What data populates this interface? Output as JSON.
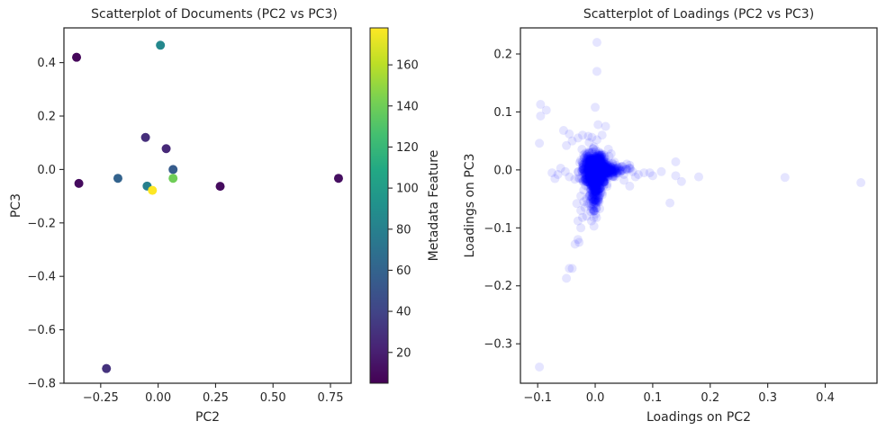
{
  "chart_data": [
    {
      "type": "scatter",
      "title": "Scatterplot of Documents (PC2 vs PC3)",
      "xlabel": "PC2",
      "ylabel": "PC3",
      "xlim": [
        -0.41,
        0.84
      ],
      "ylim": [
        -0.8,
        0.53
      ],
      "xticks": [
        -0.25,
        0.0,
        0.25,
        0.5,
        0.75
      ],
      "xtick_labels": [
        "−0.25",
        "0.00",
        "0.25",
        "0.50",
        "0.75"
      ],
      "yticks": [
        0.4,
        0.2,
        0.0,
        -0.2,
        -0.4,
        -0.6,
        -0.8
      ],
      "ytick_labels": [
        "0.4",
        "0.2",
        "0.0",
        "−0.2",
        "−0.4",
        "−0.6",
        "−0.8"
      ],
      "grid": false,
      "colormap": "viridis",
      "colorbar": {
        "label": "Metadata Feature",
        "range": [
          5,
          178
        ],
        "ticks": [
          20,
          40,
          60,
          80,
          100,
          120,
          140,
          160
        ],
        "tick_labels": [
          "20",
          "40",
          "60",
          "80",
          "100",
          "120",
          "140",
          "160"
        ]
      },
      "points": [
        {
          "x": -0.355,
          "y": 0.42,
          "c": 8
        },
        {
          "x": 0.01,
          "y": 0.465,
          "c": 85
        },
        {
          "x": -0.055,
          "y": 0.12,
          "c": 28
        },
        {
          "x": 0.035,
          "y": 0.078,
          "c": 25
        },
        {
          "x": -0.345,
          "y": -0.052,
          "c": 10
        },
        {
          "x": -0.175,
          "y": -0.033,
          "c": 60
        },
        {
          "x": -0.048,
          "y": -0.062,
          "c": 80
        },
        {
          "x": -0.025,
          "y": -0.078,
          "c": 178
        },
        {
          "x": 0.065,
          "y": 0.0,
          "c": 55
        },
        {
          "x": 0.065,
          "y": -0.033,
          "c": 140
        },
        {
          "x": 0.27,
          "y": -0.063,
          "c": 10
        },
        {
          "x": 0.785,
          "y": -0.033,
          "c": 12
        },
        {
          "x": -0.225,
          "y": -0.745,
          "c": 30
        }
      ]
    },
    {
      "type": "scatter",
      "title": "Scatterplot of Loadings (PC2 vs PC3)",
      "xlabel": "Loadings on PC2",
      "ylabel": "Loadings on PC3",
      "xlim": [
        -0.13,
        0.49
      ],
      "ylim": [
        -0.368,
        0.245
      ],
      "xticks": [
        -0.1,
        0.0,
        0.1,
        0.2,
        0.3,
        0.4
      ],
      "xtick_labels": [
        "−0.1",
        "0.0",
        "0.1",
        "0.2",
        "0.3",
        "0.4"
      ],
      "yticks": [
        0.2,
        0.1,
        0.0,
        -0.1,
        -0.2,
        -0.3
      ],
      "ytick_labels": [
        "0.2",
        "0.1",
        "0.0",
        "−0.1",
        "−0.2",
        "−0.3"
      ],
      "grid": false,
      "color": "#0000ff",
      "alpha": 0.1,
      "points": [
        {
          "x": 0.003,
          "y": 0.22
        },
        {
          "x": 0.003,
          "y": 0.17
        },
        {
          "x": 0.0,
          "y": 0.108
        },
        {
          "x": -0.095,
          "y": 0.113
        },
        {
          "x": -0.085,
          "y": 0.103
        },
        {
          "x": -0.095,
          "y": 0.093
        },
        {
          "x": -0.097,
          "y": 0.046
        },
        {
          "x": -0.055,
          "y": 0.068
        },
        {
          "x": -0.045,
          "y": 0.062
        },
        {
          "x": -0.04,
          "y": 0.05
        },
        {
          "x": -0.05,
          "y": 0.042
        },
        {
          "x": -0.03,
          "y": 0.055
        },
        {
          "x": -0.022,
          "y": 0.06
        },
        {
          "x": 0.005,
          "y": 0.078
        },
        {
          "x": 0.018,
          "y": 0.075
        },
        {
          "x": 0.012,
          "y": 0.06
        },
        {
          "x": -0.012,
          "y": 0.058
        },
        {
          "x": 0.003,
          "y": 0.052
        },
        {
          "x": -0.075,
          "y": -0.005
        },
        {
          "x": -0.07,
          "y": -0.015
        },
        {
          "x": -0.065,
          "y": -0.008
        },
        {
          "x": -0.052,
          "y": -0.003
        },
        {
          "x": -0.045,
          "y": -0.012
        },
        {
          "x": -0.06,
          "y": 0.003
        },
        {
          "x": 0.04,
          "y": -0.002
        },
        {
          "x": 0.05,
          "y": -0.008
        },
        {
          "x": 0.065,
          "y": -0.003
        },
        {
          "x": 0.075,
          "y": -0.008
        },
        {
          "x": 0.085,
          "y": -0.005
        },
        {
          "x": 0.095,
          "y": -0.005
        },
        {
          "x": 0.1,
          "y": -0.01
        },
        {
          "x": 0.07,
          "y": -0.012
        },
        {
          "x": 0.055,
          "y": 0.01
        },
        {
          "x": 0.06,
          "y": 0.008
        },
        {
          "x": 0.045,
          "y": 0.005
        },
        {
          "x": 0.035,
          "y": -0.012
        },
        {
          "x": 0.06,
          "y": -0.028
        },
        {
          "x": 0.05,
          "y": -0.018
        },
        {
          "x": 0.115,
          "y": -0.003
        },
        {
          "x": 0.14,
          "y": 0.014
        },
        {
          "x": 0.14,
          "y": -0.01
        },
        {
          "x": 0.15,
          "y": -0.02
        },
        {
          "x": 0.18,
          "y": -0.012
        },
        {
          "x": 0.13,
          "y": -0.057
        },
        {
          "x": 0.33,
          "y": -0.013
        },
        {
          "x": 0.462,
          "y": -0.022
        },
        {
          "x": -0.02,
          "y": -0.035
        },
        {
          "x": -0.025,
          "y": -0.045
        },
        {
          "x": -0.02,
          "y": -0.055
        },
        {
          "x": -0.015,
          "y": -0.05
        },
        {
          "x": -0.018,
          "y": -0.065
        },
        {
          "x": -0.015,
          "y": -0.08
        },
        {
          "x": -0.025,
          "y": -0.07
        },
        {
          "x": -0.03,
          "y": -0.088
        },
        {
          "x": -0.025,
          "y": -0.1
        },
        {
          "x": -0.03,
          "y": -0.12
        },
        {
          "x": -0.035,
          "y": -0.128
        },
        {
          "x": -0.028,
          "y": -0.125
        },
        {
          "x": -0.045,
          "y": -0.17
        },
        {
          "x": -0.04,
          "y": -0.17
        },
        {
          "x": -0.05,
          "y": -0.187
        },
        {
          "x": -0.032,
          "y": -0.058
        },
        {
          "x": -0.022,
          "y": -0.082
        },
        {
          "x": -0.01,
          "y": -0.045
        },
        {
          "x": -0.097,
          "y": -0.34
        }
      ]
    }
  ]
}
